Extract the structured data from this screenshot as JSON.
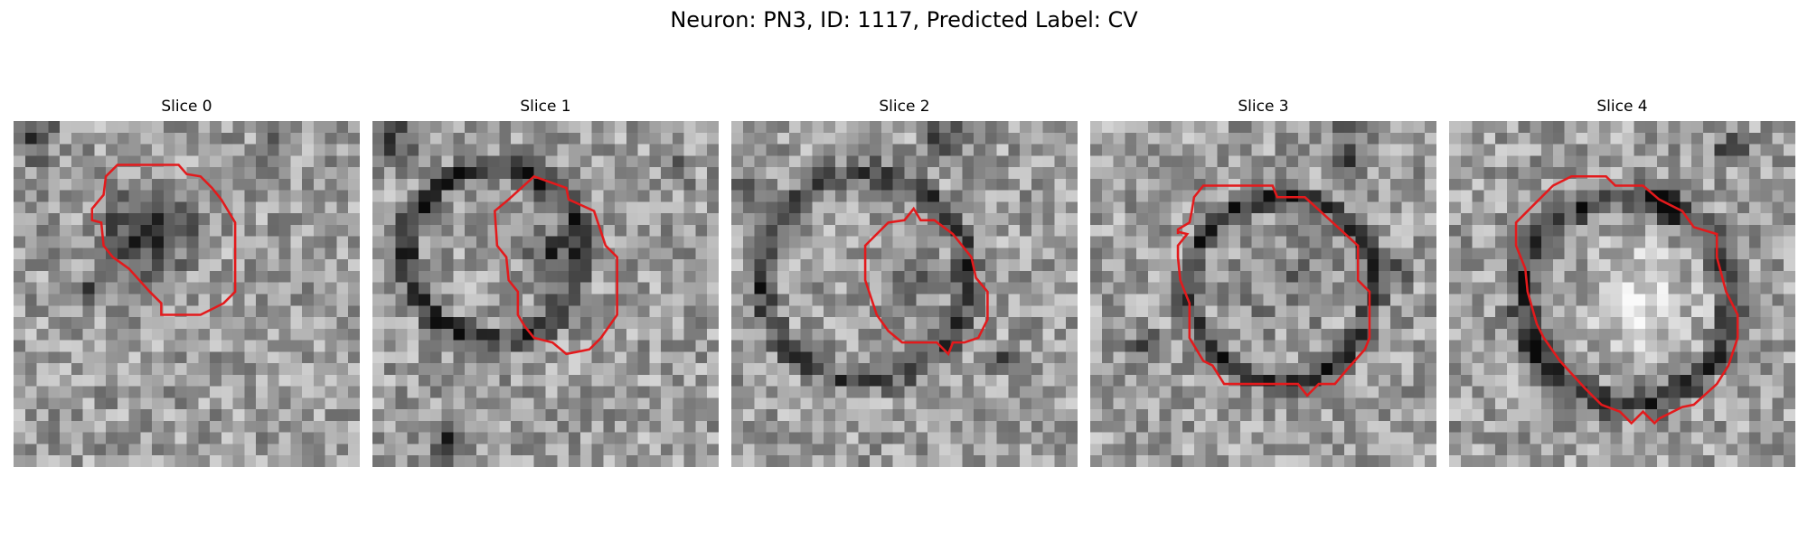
{
  "figure": {
    "title": "Neuron: PN3, ID: 1117, Predicted Label: CV",
    "outline_color": "#e31a1c",
    "colormap": "gray"
  },
  "slices": [
    {
      "label": "Slice 0"
    },
    {
      "label": "Slice 1"
    },
    {
      "label": "Slice 2"
    },
    {
      "label": "Slice 3"
    },
    {
      "label": "Slice 4"
    }
  ]
}
